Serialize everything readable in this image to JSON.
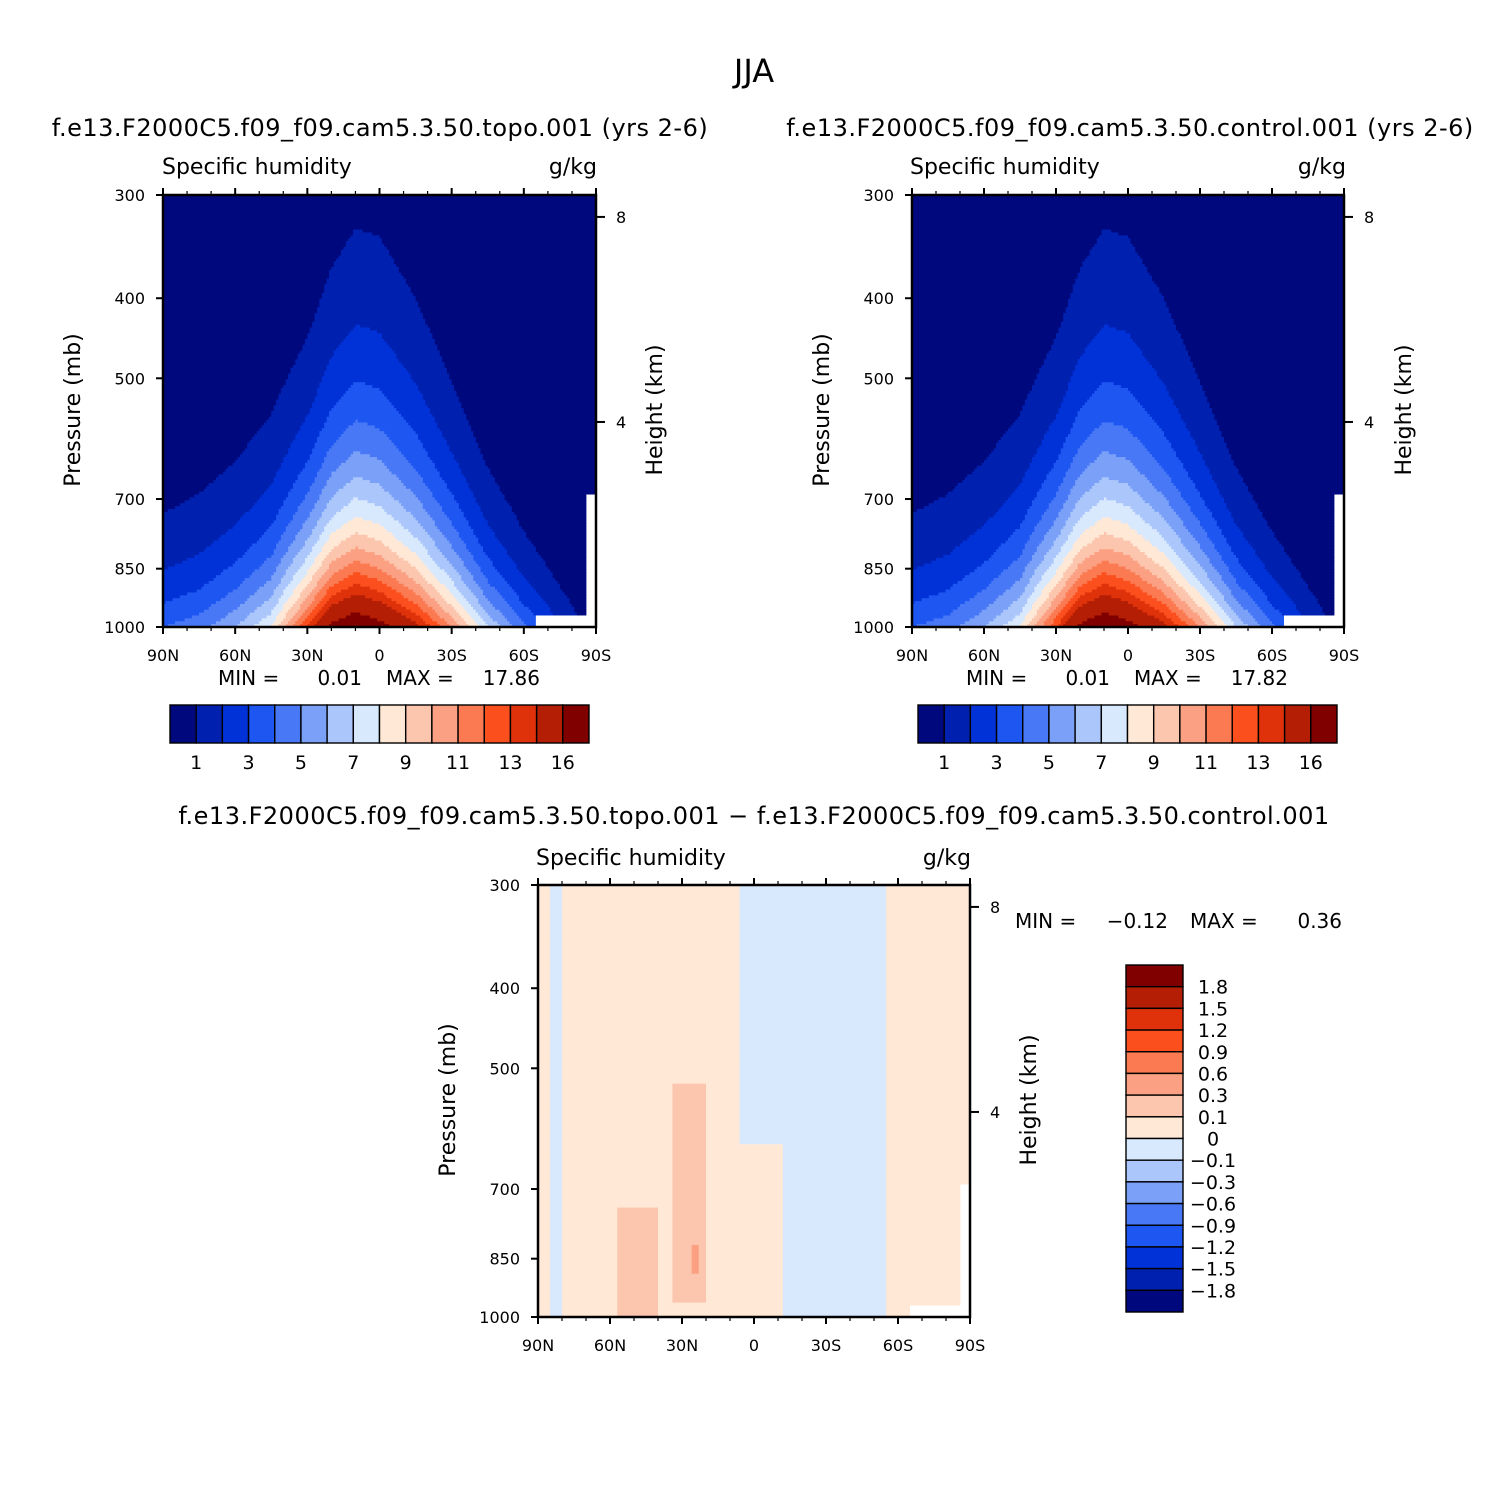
{
  "figure": {
    "title": "JJA",
    "variable_label": "Specific humidity",
    "units_label": "g/kg"
  },
  "colors": {
    "abs_palette": [
      "#00087e",
      "#0020b0",
      "#0032d8",
      "#1e56f2",
      "#4878f5",
      "#7aa0f8",
      "#aac6fb",
      "#d8e8fd",
      "#ffe8d6",
      "#fcc6ae",
      "#fba083",
      "#fb7a52",
      "#fc4f1e",
      "#df320b",
      "#b31e05",
      "#800000"
    ],
    "diff_palette": [
      "#00087e",
      "#0020b0",
      "#0032d8",
      "#1e56f2",
      "#4878f5",
      "#7aa0f8",
      "#aac6fb",
      "#d8e8fd",
      "#ffe8d6",
      "#fcc6ae",
      "#fba083",
      "#fb7a52",
      "#fc4f1e",
      "#df320b",
      "#b31e05",
      "#800000"
    ]
  },
  "chart_data": [
    {
      "type": "contour",
      "panel_title": "f.e13.F2000C5.f09_f09.cam5.3.50.topo.001  (yrs 2-6)",
      "left_label": "Specific humidity",
      "right_label": "g/kg",
      "ylabel": "Pressure  (mb)",
      "ylabel_right": "Height  (km)",
      "x_ticks": [
        "90N",
        "60N",
        "30N",
        "0",
        "30S",
        "60S",
        "90S"
      ],
      "x_tick_values": [
        90,
        60,
        30,
        0,
        -30,
        -60,
        -90
      ],
      "y_ticks": [
        "300",
        "400",
        "500",
        "700",
        "850",
        "1000"
      ],
      "y_tick_values": [
        300,
        400,
        500,
        700,
        850,
        1000
      ],
      "y_right_ticks": [
        "8",
        "4"
      ],
      "y_right_tick_values": [
        8,
        4
      ],
      "xlim": [
        90,
        -90
      ],
      "ylim": [
        1000,
        300
      ],
      "min_label": "MIN =",
      "min_value": "0.01",
      "max_label": "MAX =",
      "max_value": "17.86",
      "colorbar_labels": [
        "1",
        "3",
        "5",
        "7",
        "9",
        "11",
        "13",
        "16"
      ],
      "colorbar_levels": [
        0.5,
        1,
        2,
        3,
        4,
        5,
        6,
        7,
        8,
        9,
        10,
        11,
        12,
        13,
        14,
        16
      ],
      "peak_latitude": 10,
      "peak_value": 17.86
    },
    {
      "type": "contour",
      "panel_title": "f.e13.F2000C5.f09_f09.cam5.3.50.control.001  (yrs 2-6)",
      "left_label": "Specific humidity",
      "right_label": "g/kg",
      "ylabel": "Pressure  (mb)",
      "ylabel_right": "Height  (km)",
      "x_ticks": [
        "90N",
        "60N",
        "30N",
        "0",
        "30S",
        "60S",
        "90S"
      ],
      "x_tick_values": [
        90,
        60,
        30,
        0,
        -30,
        -60,
        -90
      ],
      "y_ticks": [
        "300",
        "400",
        "500",
        "700",
        "850",
        "1000"
      ],
      "y_tick_values": [
        300,
        400,
        500,
        700,
        850,
        1000
      ],
      "y_right_ticks": [
        "8",
        "4"
      ],
      "y_right_tick_values": [
        8,
        4
      ],
      "xlim": [
        90,
        -90
      ],
      "ylim": [
        1000,
        300
      ],
      "min_label": "MIN =",
      "min_value": "0.01",
      "max_label": "MAX =",
      "max_value": "17.82",
      "colorbar_labels": [
        "1",
        "3",
        "5",
        "7",
        "9",
        "11",
        "13",
        "16"
      ],
      "colorbar_levels": [
        0.5,
        1,
        2,
        3,
        4,
        5,
        6,
        7,
        8,
        9,
        10,
        11,
        12,
        13,
        14,
        16
      ],
      "peak_latitude": 10,
      "peak_value": 17.82
    },
    {
      "type": "contour",
      "panel_title": "f.e13.F2000C5.f09_f09.cam5.3.50.topo.001  −  f.e13.F2000C5.f09_f09.cam5.3.50.control.001",
      "left_label": "Specific humidity",
      "right_label": "g/kg",
      "ylabel": "Pressure  (mb)",
      "ylabel_right": "Height  (km)",
      "x_ticks": [
        "90N",
        "60N",
        "30N",
        "0",
        "30S",
        "60S",
        "90S"
      ],
      "x_tick_values": [
        90,
        60,
        30,
        0,
        -30,
        -60,
        -90
      ],
      "y_ticks": [
        "300",
        "400",
        "500",
        "700",
        "850",
        "1000"
      ],
      "y_tick_values": [
        300,
        400,
        500,
        700,
        850,
        1000
      ],
      "y_right_ticks": [
        "8",
        "4"
      ],
      "y_right_tick_values": [
        8,
        4
      ],
      "xlim": [
        90,
        -90
      ],
      "ylim": [
        1000,
        300
      ],
      "min_label": "MIN =",
      "min_value": "−0.12",
      "max_label": "MAX =",
      "max_value": "0.36",
      "colorbar_labels": [
        "1.8",
        "1.5",
        "1.2",
        "0.9",
        "0.6",
        "0.3",
        "0.1",
        "0",
        "−0.1",
        "−0.3",
        "−0.6",
        "−0.9",
        "−1.2",
        "−1.5",
        "−1.8"
      ],
      "colorbar_levels": [
        1.8,
        1.5,
        1.2,
        0.9,
        0.6,
        0.3,
        0.1,
        0,
        -0.1,
        -0.3,
        -0.6,
        -0.9,
        -1.2,
        -1.5,
        -1.8
      ]
    }
  ]
}
